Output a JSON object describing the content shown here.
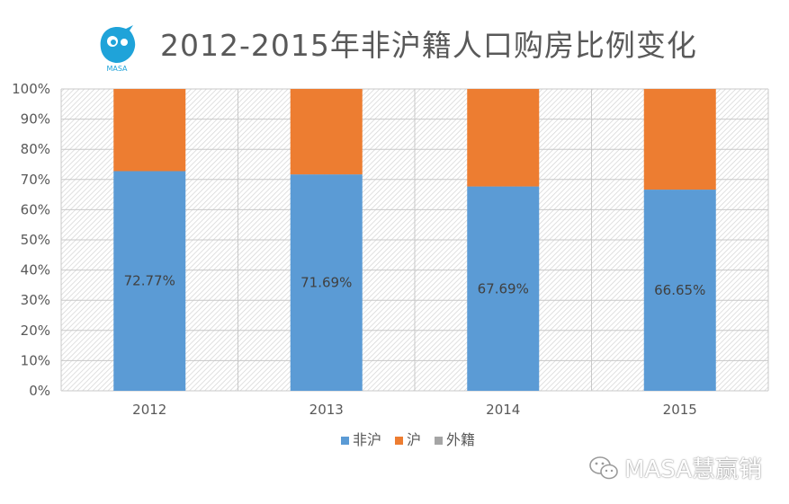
{
  "header": {
    "title": "2012-2015年非沪籍人口购房比例变化",
    "logo_text": "MASA"
  },
  "watermark": {
    "text": "MASA慧赢销"
  },
  "colors": {
    "non_shanghai": "#5B9BD5",
    "shanghai": "#ED7D31",
    "foreign": "#A5A5A5"
  },
  "chart_data": {
    "type": "bar",
    "stacked": true,
    "categories": [
      "2012",
      "2013",
      "2014",
      "2015"
    ],
    "series": [
      {
        "name": "非沪",
        "values": [
          72.77,
          71.69,
          67.69,
          66.65
        ],
        "labels": [
          "72.77%",
          "71.69%",
          "67.69%",
          "66.65%"
        ],
        "color": "#5B9BD5"
      },
      {
        "name": "沪",
        "values": [
          27.23,
          28.31,
          32.31,
          33.35
        ],
        "color": "#ED7D31"
      },
      {
        "name": "外籍",
        "values": [
          0,
          0,
          0,
          0
        ],
        "color": "#A5A5A5"
      }
    ],
    "yticks": [
      "0%",
      "10%",
      "20%",
      "30%",
      "40%",
      "50%",
      "60%",
      "70%",
      "80%",
      "90%",
      "100%"
    ],
    "ylim": [
      0,
      100
    ],
    "grid": true,
    "legend_position": "bottom"
  }
}
